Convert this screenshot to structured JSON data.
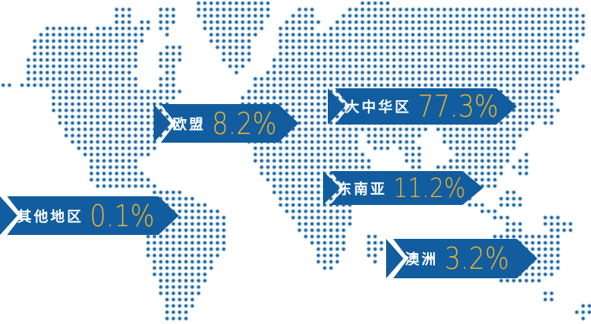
{
  "colors": {
    "banner_blue": "#115d9f",
    "percent_gold": "#f0b32c",
    "label_white": "#ffffff",
    "dot_fill": "#1b5c96",
    "dot_ring": "#7aaed6",
    "background": "#ffffff"
  },
  "regions": [
    {
      "id": "eu",
      "label": "欧盟",
      "value": "8.2%"
    },
    {
      "id": "greater-china",
      "label": "大中华区",
      "value": "77.3%"
    },
    {
      "id": "southeast-asia",
      "label": "东南亚",
      "value": "11.2%"
    },
    {
      "id": "other-regions",
      "label": "其他地区",
      "value": "0.1%"
    },
    {
      "id": "australia",
      "label": "澳洲",
      "value": "3.2%"
    }
  ],
  "chart_data": {
    "type": "map",
    "title": "",
    "categories": [
      "大中华区",
      "东南亚",
      "欧盟",
      "澳洲",
      "其他地区"
    ],
    "values": [
      77.3,
      11.2,
      8.2,
      3.2,
      0.1
    ],
    "unit": "%",
    "legend_position": "none",
    "annotation_style": "ribbon-arrow callouts over dotted world map"
  }
}
